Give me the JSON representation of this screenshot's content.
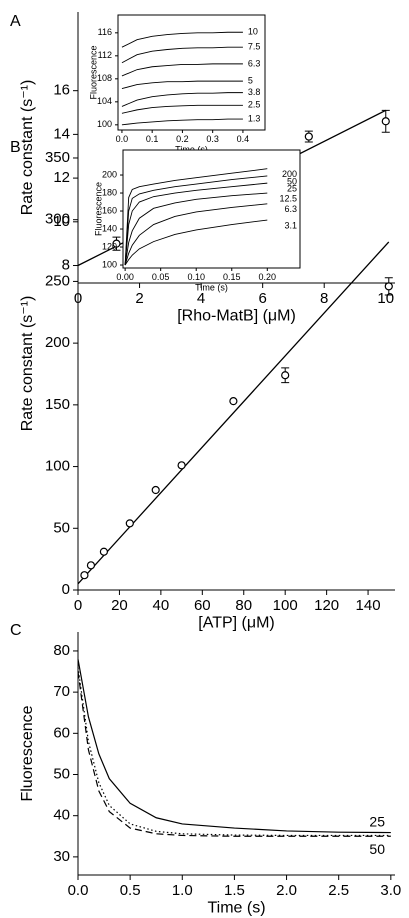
{
  "chart_data": [
    {
      "type": "scatter",
      "panel_label": "A",
      "xlabel": "[Rho-MatB] (μM)",
      "ylabel": "Rate constant (s⁻¹)",
      "x": [
        1.25,
        2.5,
        3.75,
        5,
        6.25,
        7.5,
        10
      ],
      "values": [
        9.0,
        10.0,
        10.55,
        11.6,
        12.45,
        13.9,
        14.6
      ],
      "errors": [
        0.3,
        0.15,
        0.2,
        0.3,
        0.15,
        0.25,
        0.5
      ],
      "fit": {
        "x": [
          0,
          10
        ],
        "y": [
          8.0,
          15.1
        ]
      },
      "xlim": [
        0,
        10.3
      ],
      "ylim": [
        7.2,
        19.6
      ],
      "xticks": [
        0,
        2,
        4,
        6,
        8,
        10
      ],
      "yticks": [
        8,
        10,
        12,
        14,
        16
      ]
    },
    {
      "type": "line",
      "xlabel": "Time (s)",
      "ylabel": "Fluorescence",
      "x": [
        0,
        0.05,
        0.1,
        0.15,
        0.2,
        0.25,
        0.3,
        0.35,
        0.4
      ],
      "series": [
        {
          "name": "10",
          "values": [
            113.5,
            114.8,
            115.4,
            115.7,
            115.9,
            116.0,
            116.0,
            116.1,
            116.1
          ]
        },
        {
          "name": "7.5",
          "values": [
            110.8,
            112.2,
            112.8,
            113.1,
            113.3,
            113.4,
            113.4,
            113.5,
            113.5
          ]
        },
        {
          "name": "6.3",
          "values": [
            108.5,
            109.6,
            110.1,
            110.3,
            110.5,
            110.5,
            110.6,
            110.6,
            110.6
          ]
        },
        {
          "name": "5",
          "values": [
            106.3,
            107.0,
            107.3,
            107.5,
            107.5,
            107.6,
            107.6,
            107.6,
            107.6
          ]
        },
        {
          "name": "3.8",
          "values": [
            103.2,
            104.3,
            104.9,
            105.2,
            105.4,
            105.5,
            105.5,
            105.6,
            105.6
          ]
        },
        {
          "name": "2.5",
          "values": [
            102.0,
            102.6,
            103.0,
            103.2,
            103.3,
            103.4,
            103.4,
            103.4,
            103.4
          ]
        },
        {
          "name": "1.3",
          "values": [
            100.0,
            100.3,
            100.5,
            100.7,
            100.8,
            100.9,
            100.9,
            101.0,
            101.0
          ]
        }
      ],
      "xlim": [
        -0.013,
        0.473
      ],
      "ylim": [
        99.1,
        119.1
      ],
      "xticks": [
        {
          "value": 0,
          "label": "0.0"
        },
        0.1,
        0.2,
        0.3,
        0.4
      ],
      "yticks": [
        100,
        104,
        108,
        112,
        116
      ]
    },
    {
      "type": "scatter",
      "panel_label": "B",
      "xlabel": "[ATP] (μM)",
      "ylabel": "Rate constant (s⁻¹)",
      "x": [
        3.1,
        6.25,
        12.5,
        25,
        37.5,
        50,
        75,
        100,
        150
      ],
      "values": [
        12,
        20,
        31,
        54,
        81,
        101,
        153,
        174,
        246
      ],
      "errors": [
        0,
        0,
        0,
        0,
        0,
        0,
        0,
        6,
        7
      ],
      "fit": {
        "x": [
          0,
          150
        ],
        "y": [
          5,
          282
        ]
      },
      "xlim": [
        0,
        153
      ],
      "ylim": [
        0,
        367
      ],
      "xticks": [
        0,
        20,
        40,
        60,
        80,
        100,
        120,
        140
      ],
      "yticks": [
        0,
        50,
        100,
        150,
        200,
        250,
        300,
        350
      ]
    },
    {
      "type": "line",
      "xlabel": "Time (s)",
      "ylabel": "Fluorescence",
      "x": [
        0,
        0.005,
        0.01,
        0.02,
        0.04,
        0.07,
        0.1,
        0.15,
        0.2
      ],
      "series": [
        {
          "name": "200",
          "values": [
            100,
            175,
            184,
            187,
            190,
            194,
            197,
            202,
            207
          ]
        },
        {
          "name": "50",
          "values": [
            100,
            160,
            174,
            179,
            183,
            187,
            190,
            195,
            199
          ]
        },
        {
          "name": "25",
          "values": [
            100,
            145,
            160,
            170,
            176,
            180,
            183,
            187,
            191
          ]
        },
        {
          "name": "12.5",
          "values": [
            100,
            125,
            138,
            152,
            163,
            169,
            173,
            177,
            180
          ]
        },
        {
          "name": "6.3",
          "values": [
            100,
            113,
            122,
            133,
            145,
            154,
            159,
            164,
            168
          ]
        },
        {
          "name": "3.1",
          "values": [
            100,
            106,
            111,
            118,
            126,
            134,
            139,
            145,
            150
          ]
        }
      ],
      "xlim": [
        -0.003,
        0.246
      ],
      "ylim": [
        96.7,
        227.8
      ],
      "xticks": [
        {
          "value": 0,
          "label": "0.00"
        },
        0.05,
        {
          "value": 0.1,
          "label": "0.10"
        },
        0.15,
        {
          "value": 0.2,
          "label": "0.20"
        }
      ],
      "yticks": [
        100,
        120,
        140,
        160,
        180,
        200
      ]
    },
    {
      "type": "line",
      "panel_label": "C",
      "xlabel": "Time (s)",
      "ylabel": "Fluorescence",
      "x": [
        0,
        0.1,
        0.2,
        0.3,
        0.5,
        0.75,
        1,
        1.5,
        2,
        2.5,
        3
      ],
      "series": [
        {
          "name": "25",
          "line_style": "solid",
          "values": [
            78,
            64,
            55,
            49,
            43,
            39.5,
            38,
            37,
            36.3,
            36,
            35.9
          ]
        },
        {
          "name": "50",
          "line_style": "dashed",
          "values": [
            75,
            56,
            46,
            41,
            37,
            35.6,
            35.2,
            35,
            35,
            35,
            35
          ]
        },
        {
          "line_style": "dotted",
          "values": [
            76,
            58,
            48,
            42.5,
            38,
            36.2,
            35.6,
            35.3,
            35.2,
            35.2,
            35.2
          ]
        }
      ],
      "xlim": [
        0,
        3.04
      ],
      "ylim": [
        25.6,
        84.6
      ],
      "xticks": [
        {
          "value": 0,
          "label": "0.0"
        },
        0.5,
        {
          "value": 1,
          "label": "1.0"
        },
        1.5,
        {
          "value": 2,
          "label": "2.0"
        },
        2.5,
        {
          "value": 3,
          "label": "3.0"
        }
      ],
      "yticks": [
        30,
        40,
        50,
        60,
        70,
        80
      ]
    }
  ]
}
